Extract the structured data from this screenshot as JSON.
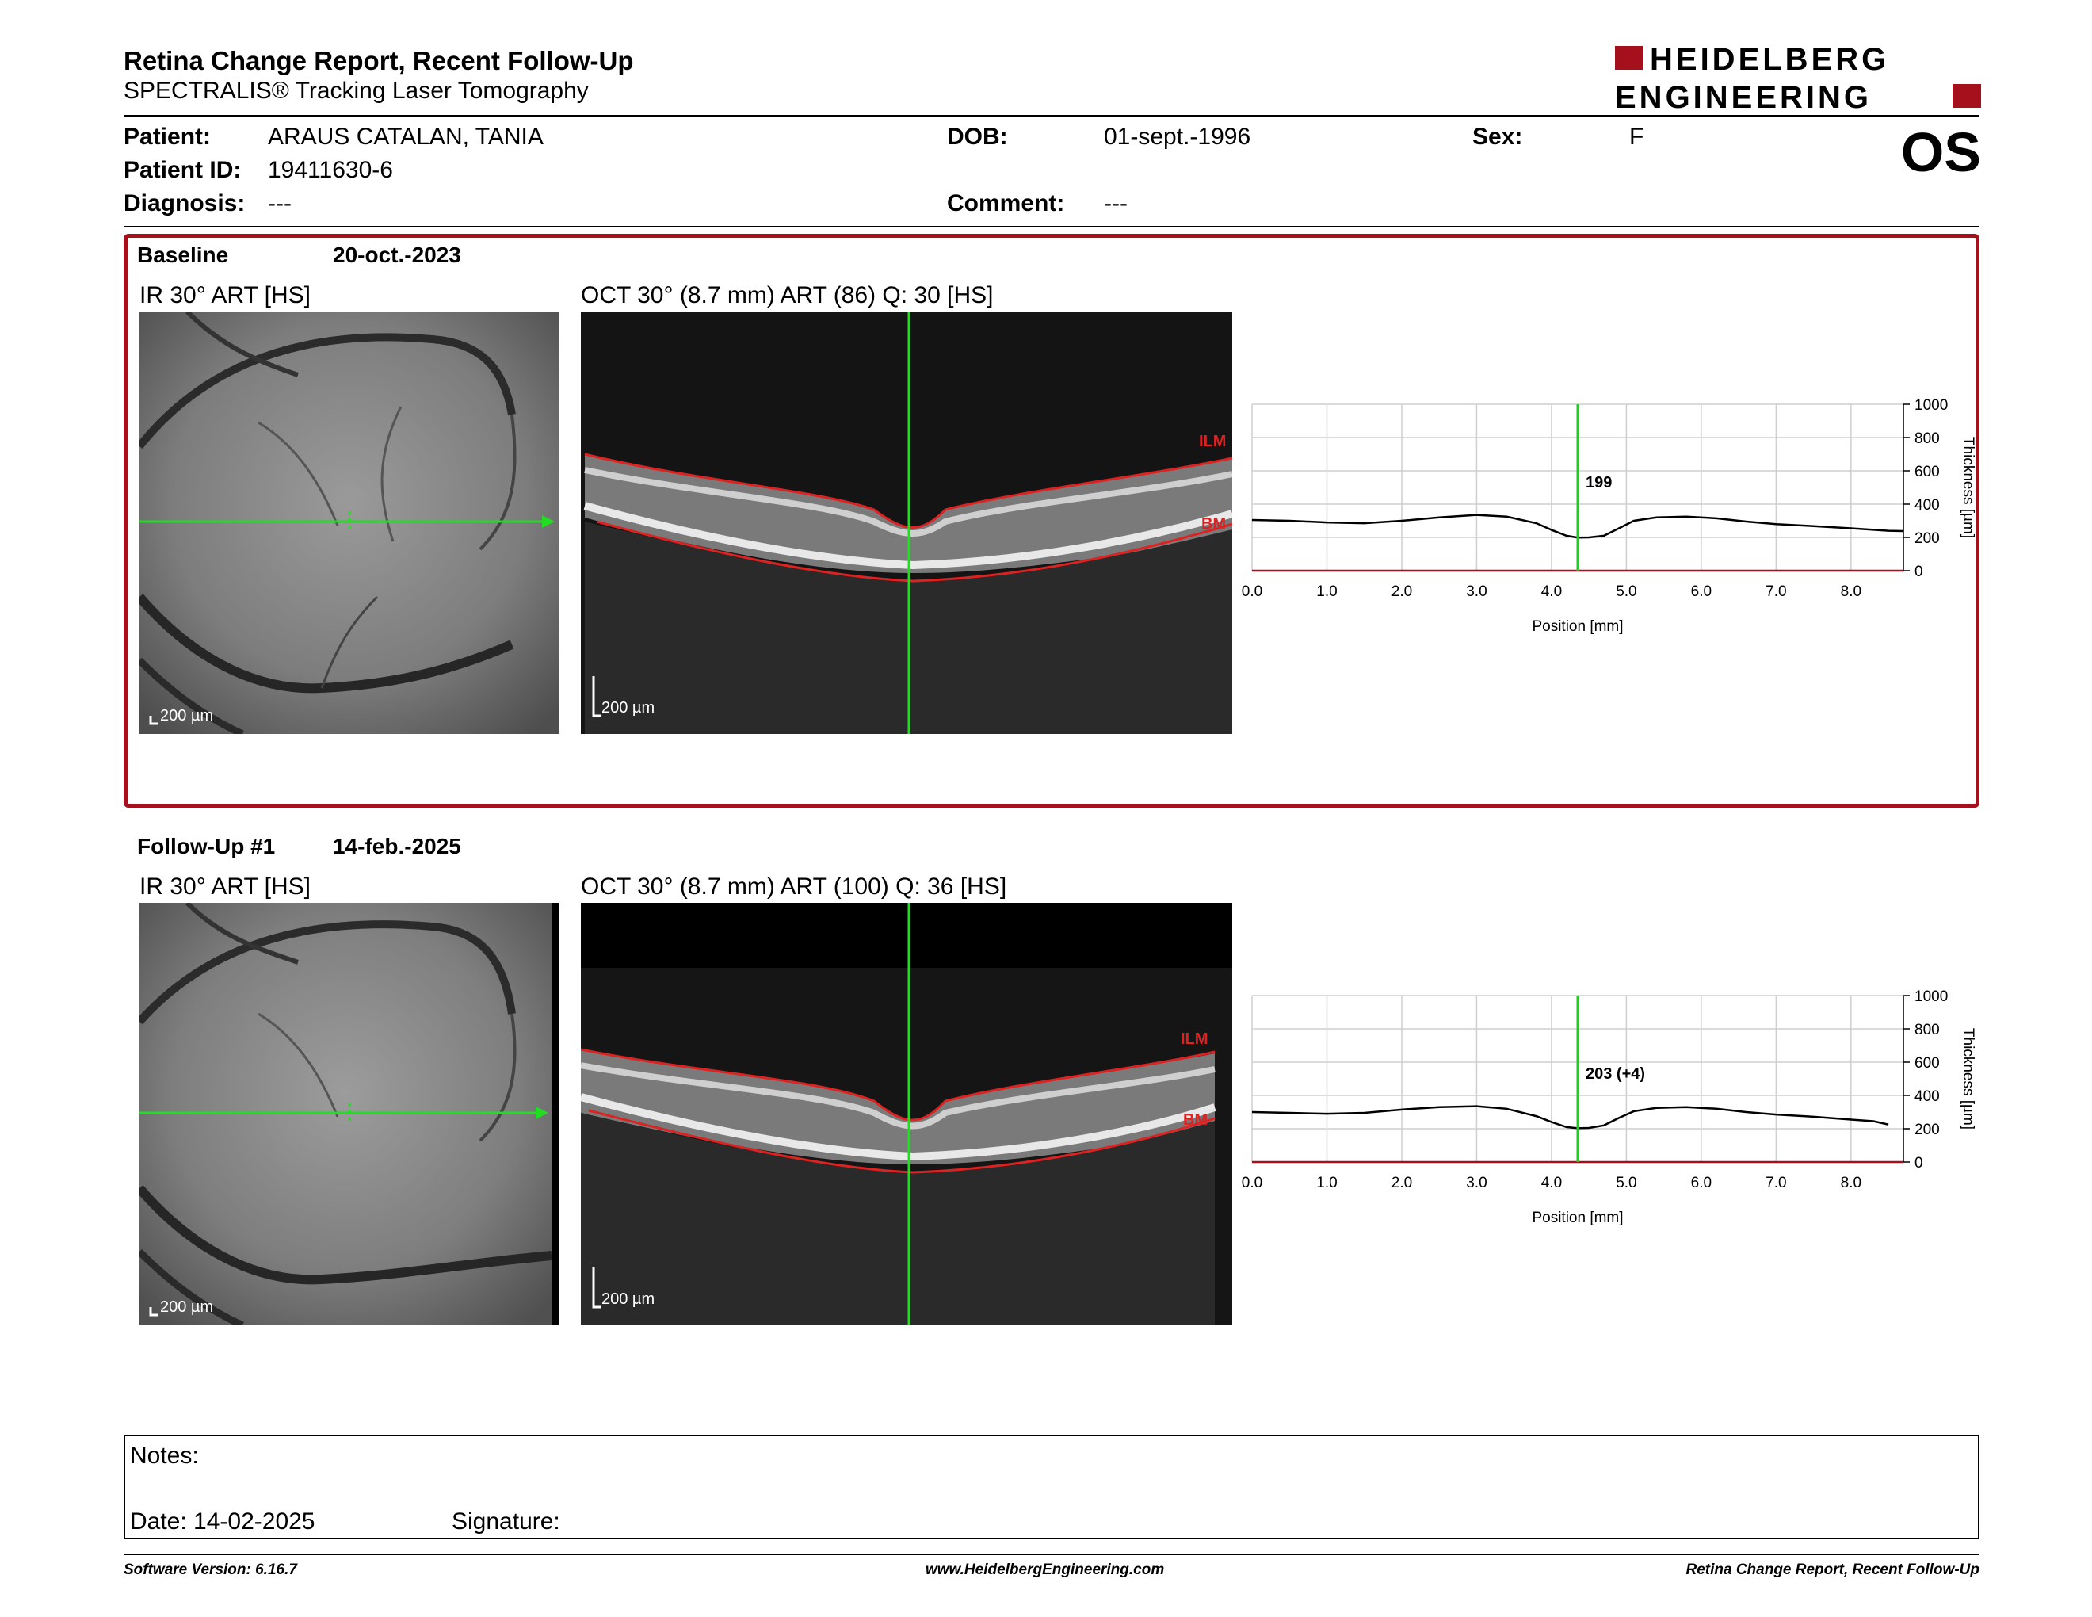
{
  "header": {
    "title": "Retina Change Report, Recent Follow-Up",
    "subtitle": "SPECTRALIS® Tracking Laser Tomography",
    "logo_line1": "HEIDELBERG",
    "logo_line2": "ENGINEERING",
    "eye": "OS"
  },
  "patient": {
    "patient_label": "Patient:",
    "patient_value": "ARAUS CATALAN, TANIA",
    "id_label": "Patient ID:",
    "id_value": "19411630-6",
    "diagnosis_label": "Diagnosis:",
    "diagnosis_value": "---",
    "dob_label": "DOB:",
    "dob_value": "01-sept.-1996",
    "comment_label": "Comment:",
    "comment_value": "---",
    "sex_label": "Sex:",
    "sex_value": "F"
  },
  "baseline": {
    "label": "Baseline",
    "date": "20-oct.-2023",
    "ir_caption": "IR 30° ART [HS]",
    "oct_caption": "OCT 30° (8.7 mm) ART (86) Q: 30 [HS]",
    "scale_ir": "200 µm",
    "scale_oct": "200 µm",
    "ilm": "ILM",
    "bm": "BM"
  },
  "followup": {
    "label": "Follow-Up #1",
    "date": "14-feb.-2025",
    "ir_caption": "IR 30° ART [HS]",
    "oct_caption": "OCT 30° (8.7 mm) ART (100) Q: 36 [HS]",
    "scale_ir": "200 µm",
    "scale_oct": "200 µm",
    "ilm": "ILM",
    "bm": "BM"
  },
  "chart_data": [
    {
      "type": "line",
      "xlabel": "Position [mm]",
      "ylabel": "Thickness [µm]",
      "xlim": [
        0.0,
        8.7
      ],
      "ylim": [
        0,
        1000
      ],
      "x_ticks": [
        "0.0",
        "1.0",
        "2.0",
        "3.0",
        "4.0",
        "5.0",
        "6.0",
        "7.0",
        "8.0"
      ],
      "y_ticks": [
        "0",
        "200",
        "400",
        "600",
        "800",
        "1000"
      ],
      "cursor_x": 4.35,
      "cursor_label": "199",
      "line_color": "#000000",
      "cursor_color": "#22cc22",
      "x": [
        0.0,
        0.5,
        1.0,
        1.5,
        2.0,
        2.5,
        3.0,
        3.4,
        3.8,
        4.0,
        4.2,
        4.35,
        4.5,
        4.7,
        4.9,
        5.1,
        5.4,
        5.8,
        6.2,
        6.6,
        7.0,
        7.5,
        8.0,
        8.5,
        8.7
      ],
      "y": [
        305,
        300,
        290,
        285,
        300,
        320,
        335,
        325,
        285,
        245,
        210,
        199,
        200,
        210,
        255,
        300,
        320,
        325,
        315,
        295,
        280,
        268,
        255,
        240,
        238
      ]
    },
    {
      "type": "line",
      "xlabel": "Position [mm]",
      "ylabel": "Thickness [µm]",
      "xlim": [
        0.0,
        8.7
      ],
      "ylim": [
        0,
        1000
      ],
      "x_ticks": [
        "0.0",
        "1.0",
        "2.0",
        "3.0",
        "4.0",
        "5.0",
        "6.0",
        "7.0",
        "8.0"
      ],
      "y_ticks": [
        "0",
        "200",
        "400",
        "600",
        "800",
        "1000"
      ],
      "cursor_x": 4.35,
      "cursor_label": "203 (+4)",
      "line_color": "#000000",
      "cursor_color": "#22cc22",
      "x": [
        0.0,
        0.5,
        1.0,
        1.5,
        2.0,
        2.5,
        3.0,
        3.4,
        3.8,
        4.0,
        4.2,
        4.35,
        4.5,
        4.7,
        4.9,
        5.1,
        5.4,
        5.8,
        6.2,
        6.6,
        7.0,
        7.5,
        8.0,
        8.3,
        8.5
      ],
      "y": [
        300,
        295,
        290,
        295,
        315,
        330,
        335,
        320,
        275,
        240,
        210,
        203,
        205,
        220,
        265,
        305,
        325,
        330,
        320,
        300,
        285,
        272,
        255,
        245,
        225
      ]
    }
  ],
  "notes": {
    "notes_label": "Notes:",
    "date_label": "Date: 14-02-2025",
    "signature_label": "Signature:"
  },
  "footer": {
    "software": "Software Version: 6.16.7",
    "website": "www.HeidelbergEngineering.com",
    "report": "Retina Change Report, Recent Follow-Up"
  }
}
